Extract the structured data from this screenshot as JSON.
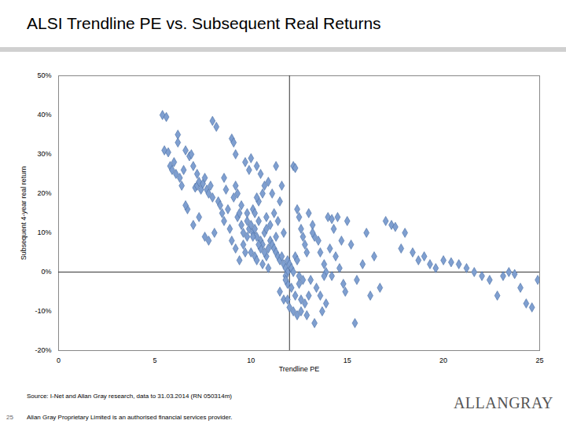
{
  "chart_data": {
    "type": "scatter",
    "title": "ALSI Trendline PE vs. Subsequent Real Returns",
    "x_label": "Trendline PE",
    "y_label": "Subsequent 4-year real return",
    "source": "Source: I-Net and Allan Gray research, data to 31.03.2014 (RN 050314m)",
    "footer": "Allan Gray Proprietary Limited is an authorised financial services provider.",
    "page": "25",
    "logo": "ALLANGRAY",
    "color": "#7f9fd0",
    "marker": "diamond",
    "grid": false,
    "reference_lines": {
      "x": 12,
      "y": 0
    },
    "xlim": [
      0,
      25
    ],
    "xticks": [
      0,
      5,
      10,
      15,
      20,
      25
    ],
    "ylim": [
      -20,
      50
    ],
    "yticks": [
      {
        "value": -20,
        "label": "-20%"
      },
      {
        "value": -10,
        "label": "-10%"
      },
      {
        "value": 0,
        "label": "0%"
      },
      {
        "value": 10,
        "label": "10%"
      },
      {
        "value": 20,
        "label": "20%"
      },
      {
        "value": 30,
        "label": "30%"
      },
      {
        "value": 40,
        "label": "40%"
      },
      {
        "value": 50,
        "label": "50%"
      }
    ],
    "x": [
      5.4,
      5.6,
      5.5,
      5.7,
      5.8,
      5.9,
      6.0,
      6.1,
      6.2,
      6.3,
      6.4,
      6.5,
      6.6,
      6.8,
      6.9,
      7.0,
      7.1,
      7.2,
      7.3,
      7.4,
      7.5,
      7.6,
      7.7,
      7.8,
      7.9,
      8.0,
      6.7,
      7.0,
      7.3,
      7.6,
      7.8,
      8.0,
      8.2,
      8.3,
      8.4,
      8.5,
      8.6,
      8.7,
      8.8,
      8.9,
      9.0,
      9.1,
      9.2,
      9.3,
      9.4,
      9.5,
      9.6,
      9.7,
      9.8,
      9.9,
      9.0,
      9.2,
      9.3,
      9.5,
      9.6,
      9.7,
      9.8,
      9.9,
      9.4,
      9.1,
      10.0,
      10.1,
      10.2,
      10.3,
      10.4,
      10.5,
      10.6,
      10.7,
      10.8,
      10.9,
      10.0,
      10.1,
      10.2,
      10.3,
      10.4,
      10.5,
      10.6,
      10.7,
      10.8,
      10.9,
      10.0,
      10.2,
      10.3,
      10.5,
      10.6,
      10.8,
      10.9,
      10.4,
      10.7,
      10.1,
      11.0,
      11.1,
      11.2,
      11.3,
      11.4,
      11.5,
      11.6,
      11.7,
      11.8,
      11.9,
      11.0,
      11.2,
      11.3,
      11.5,
      11.6,
      11.7,
      11.8,
      11.9,
      11.4,
      11.1,
      11.5,
      11.7,
      11.8,
      11.9,
      12.0,
      12.1,
      12.2,
      12.3,
      12.4,
      12.5,
      12.2,
      12.3,
      12.4,
      12.5,
      12.6,
      12.7,
      12.8,
      12.9,
      12.1,
      12.6,
      12.0,
      12.2,
      12.4,
      12.6,
      12.8,
      13.0,
      12.5,
      12.7,
      12.3,
      12.9,
      13.0,
      13.2,
      13.3,
      13.5,
      13.6,
      13.8,
      13.9,
      13.1,
      13.4,
      13.7,
      13.3,
      13.6,
      13.9,
      13.2,
      13.8,
      14.0,
      14.2,
      14.3,
      14.5,
      14.7,
      14.1,
      14.4,
      14.6,
      14.8,
      14.9,
      14.2,
      15.0,
      15.2,
      15.4,
      15.8,
      16.0,
      16.4,
      16.7,
      17.0,
      17.3,
      17.5,
      17.8,
      18.0,
      18.4,
      18.7,
      19.0,
      19.3,
      19.6,
      20.0,
      20.4,
      20.8,
      21.2,
      21.6,
      22.0,
      22.4,
      22.8,
      23.1,
      23.4,
      23.7,
      24.0,
      24.3,
      24.6,
      24.9,
      15.5,
      16.2,
      6.2,
      6.6,
      7.2,
      8.1,
      8.6,
      9.2,
      9.8,
      10.3,
      11.3,
      11.9
    ],
    "values": [
      40,
      39.5,
      31,
      30.5,
      27,
      26,
      28,
      25,
      35,
      24,
      22,
      26,
      31,
      29.5,
      30,
      27,
      21.5,
      22,
      23,
      21,
      22.5,
      24,
      21,
      20,
      22,
      19,
      16,
      12,
      14,
      9,
      8,
      38.5,
      37,
      18,
      17,
      15,
      13,
      21,
      16,
      11,
      34,
      33,
      30,
      14,
      15,
      12,
      10,
      28,
      13,
      11,
      8,
      6,
      20,
      17,
      7,
      5,
      9,
      26,
      3,
      19,
      12,
      10,
      11,
      9,
      13,
      8,
      7,
      10,
      11,
      6,
      29,
      16,
      15,
      27,
      18,
      25,
      20,
      22,
      14,
      23,
      5,
      4,
      3,
      6,
      2,
      4,
      1,
      7,
      5,
      9,
      8,
      7,
      6,
      5,
      4,
      3,
      4,
      2,
      1,
      0,
      12,
      15,
      27,
      18,
      22,
      10,
      -1,
      -3,
      13,
      20,
      -5,
      -7,
      -2,
      3,
      2,
      1,
      0,
      4,
      3,
      -1,
      27,
      26.5,
      16,
      14,
      11,
      9,
      7,
      5,
      -4,
      -7,
      -9,
      -10,
      -11,
      -10,
      -8,
      -6,
      -3,
      -2,
      -6,
      -11,
      15,
      12,
      9,
      8,
      5,
      2,
      0,
      -2,
      -4,
      -10,
      -13,
      -6,
      -8,
      10,
      -1,
      14,
      13.5,
      11,
      14,
      8,
      6,
      4,
      1,
      -3,
      -5,
      -1,
      13,
      7,
      -13,
      2,
      10,
      4,
      -4,
      13,
      12,
      11.5,
      6,
      10,
      5,
      3,
      4,
      2,
      1,
      3,
      2.5,
      2,
      1,
      0,
      -1,
      -2,
      -6,
      -1,
      0,
      -0.5,
      -4,
      -8,
      -9,
      -2,
      -2,
      -6,
      33,
      17,
      25,
      10,
      24,
      22,
      15,
      19,
      9,
      -7
    ]
  }
}
